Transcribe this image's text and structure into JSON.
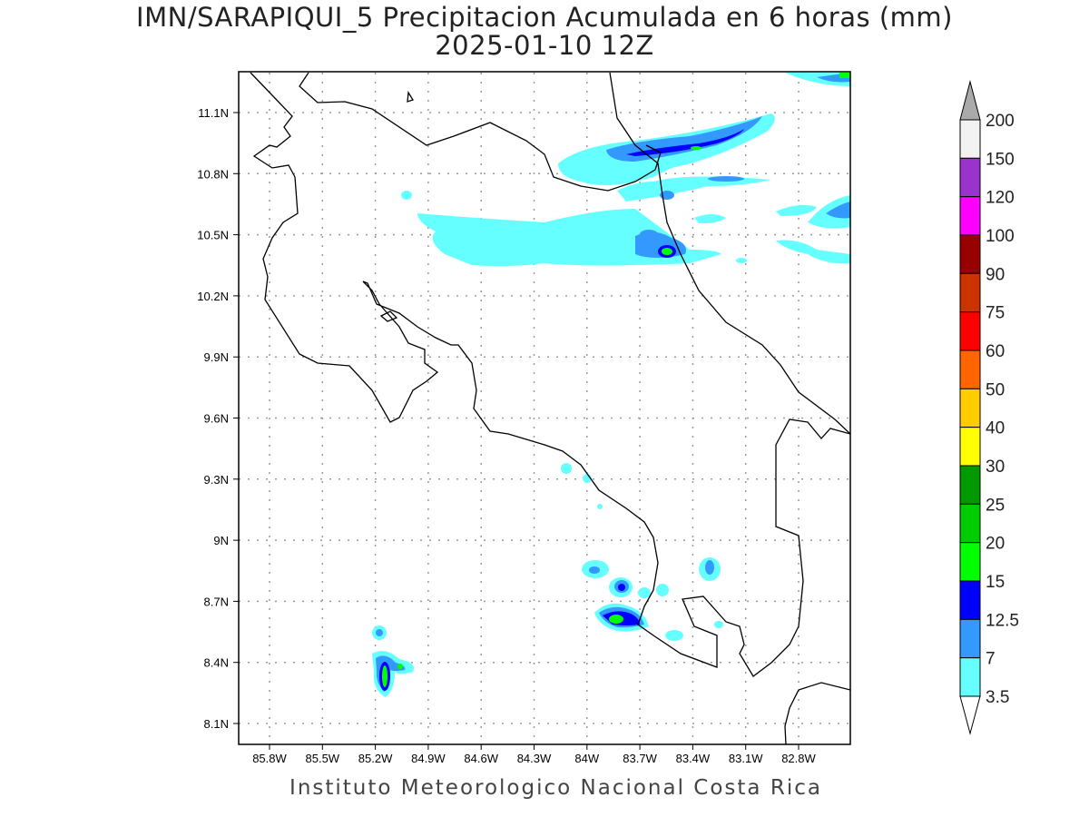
{
  "title": "IMN/SARAPIQUI_5 Precipitacion Acumulada en 6 horas (mm)",
  "subtitle": "2025-01-10 12Z",
  "footer": "Instituto Meteorologico Nacional Costa Rica",
  "map": {
    "lon_labels": [
      "85.8W",
      "85.5W",
      "85.2W",
      "84.9W",
      "84.6W",
      "84.3W",
      "84W",
      "83.7W",
      "83.4W",
      "83.1W",
      "82.8W"
    ],
    "lat_labels": [
      "11.1N",
      "10.8N",
      "10.5N",
      "10.2N",
      "9.9N",
      "9.6N",
      "9.3N",
      "9N",
      "8.7N",
      "8.4N",
      "8.1N"
    ]
  },
  "colorbar": {
    "labels": [
      "200",
      "150",
      "120",
      "100",
      "90",
      "75",
      "60",
      "50",
      "40",
      "30",
      "25",
      "20",
      "15",
      "12.5",
      "7",
      "3.5"
    ],
    "colors": [
      "#f2f2f2",
      "#9933cc",
      "#ff00ff",
      "#990000",
      "#cc3300",
      "#ff0000",
      "#ff6600",
      "#ffcc00",
      "#ffff00",
      "#009900",
      "#00cc00",
      "#00ff00",
      "#0000ff",
      "#3399ff",
      "#66ffff"
    ],
    "over_color": "#aaaaaa",
    "under_color": "#ffffff"
  }
}
